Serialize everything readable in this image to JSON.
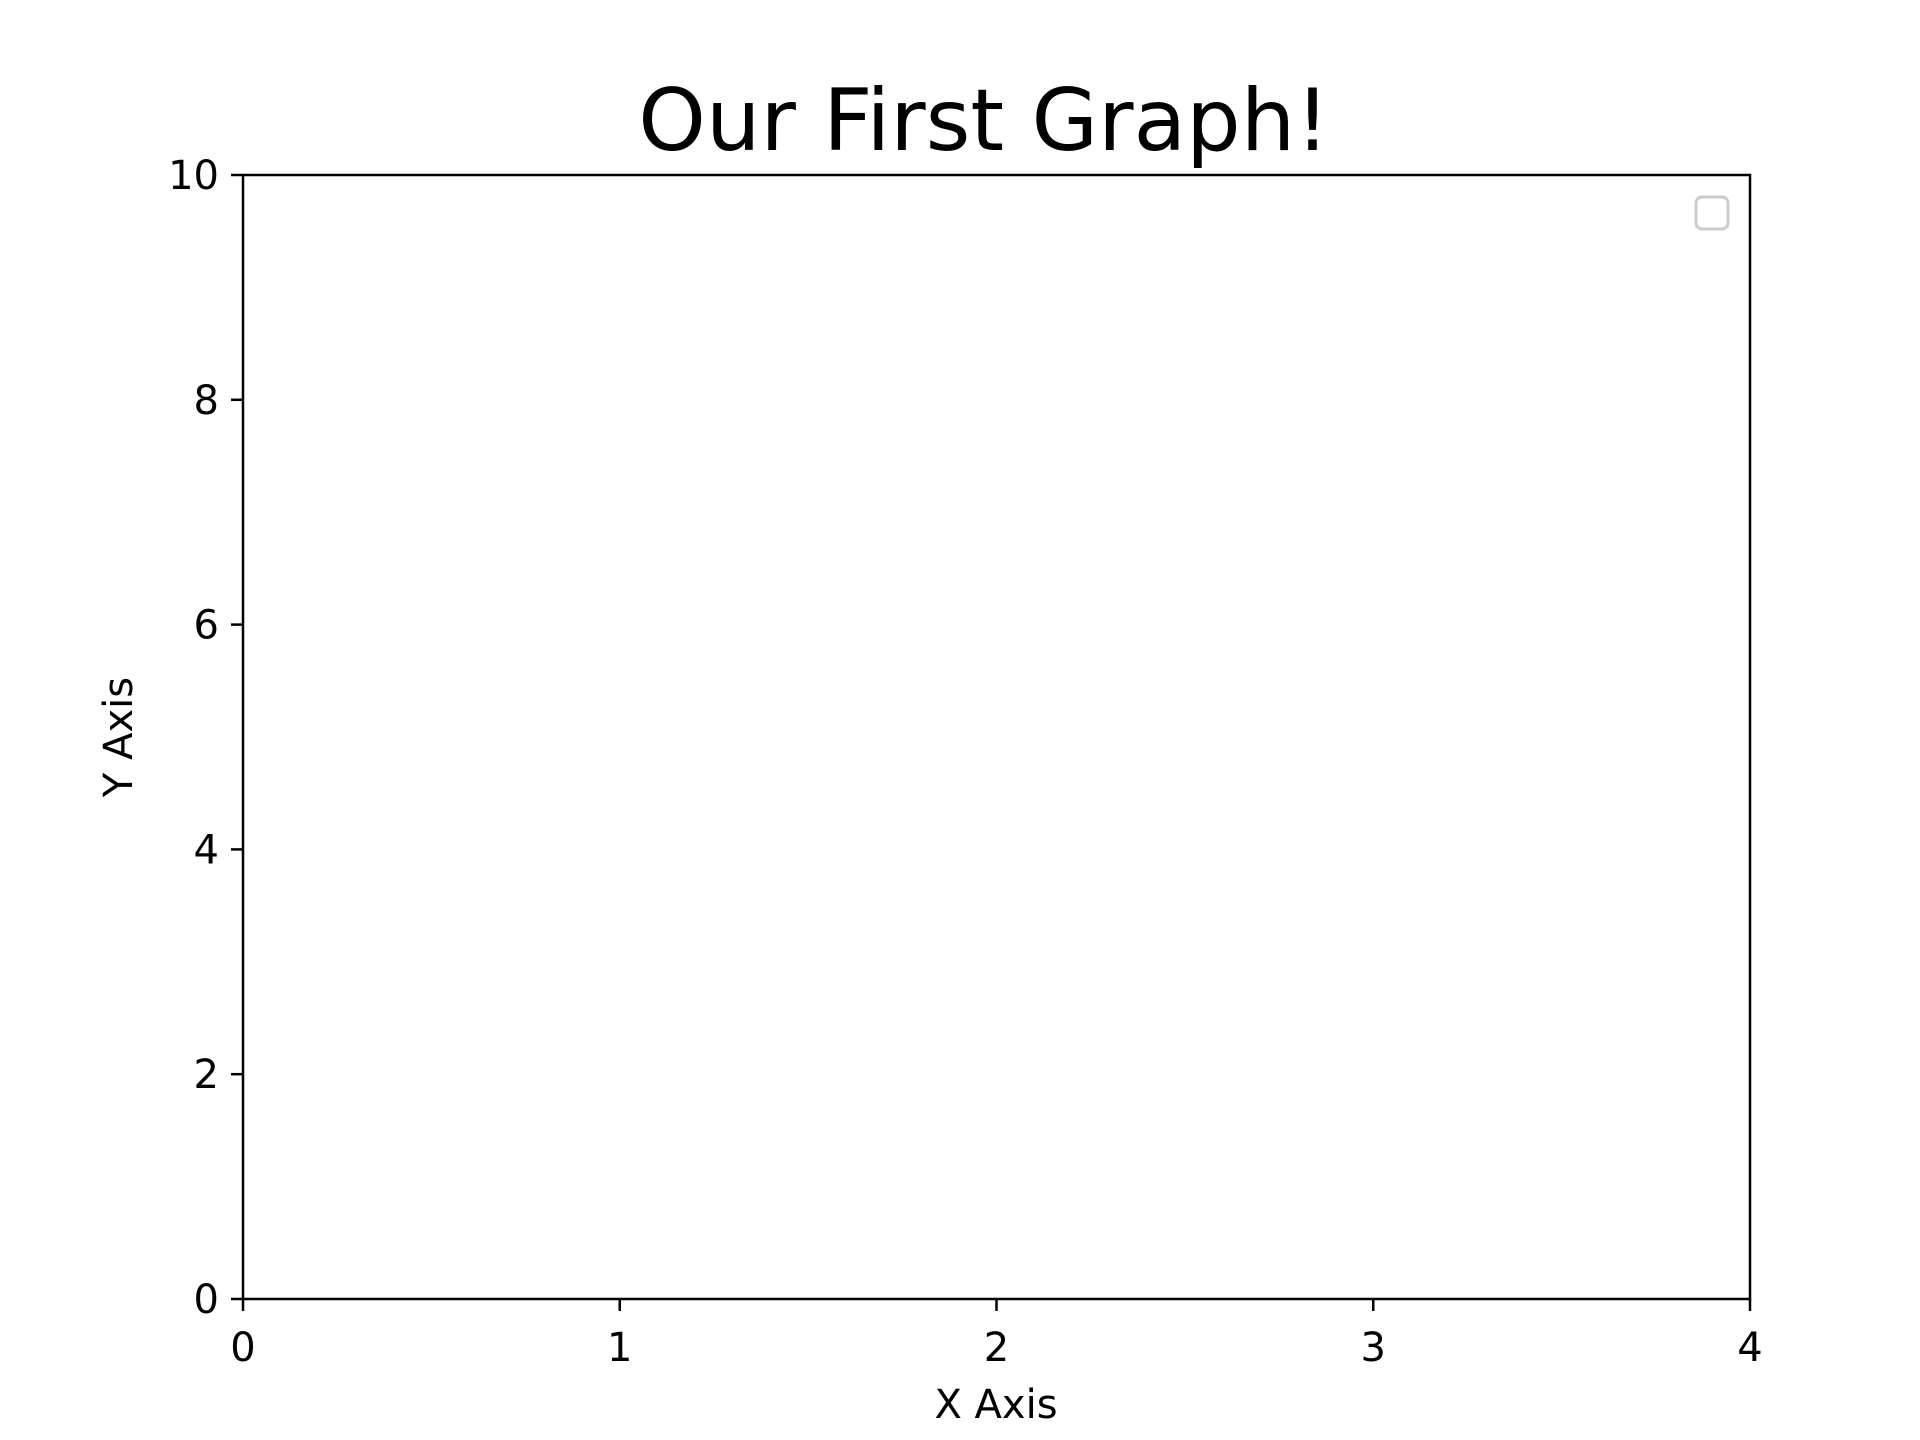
{
  "chart_data": {
    "type": "line",
    "title": "Our First Graph!",
    "xlabel": "X Axis",
    "ylabel": "Y Axis",
    "xlim": [
      0,
      4
    ],
    "ylim": [
      0,
      10
    ],
    "x_ticks": [
      "0",
      "1",
      "2",
      "3",
      "4"
    ],
    "y_ticks": [
      "0",
      "2",
      "4",
      "6",
      "8",
      "10"
    ],
    "series": [],
    "grid": false,
    "legend": {
      "position": "top-right",
      "entries": []
    },
    "colors": {
      "background": "#ffffff",
      "axes": "#000000",
      "legend_border": "#cccccc"
    }
  }
}
